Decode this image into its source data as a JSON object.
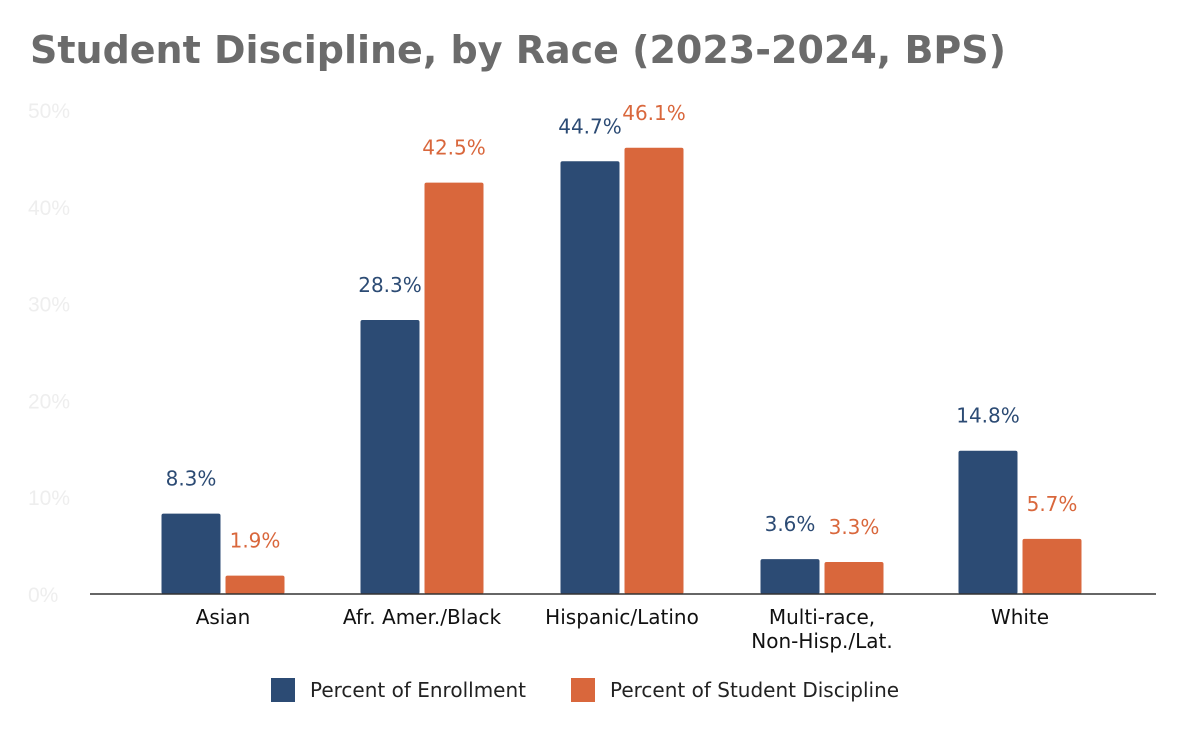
{
  "chart_data": {
    "type": "bar",
    "title": "Student Discipline, by Race (2023-2024, BPS)",
    "categories": [
      [
        "Asian"
      ],
      [
        "Afr. Amer./Black"
      ],
      [
        "Hispanic/Latino"
      ],
      [
        "Multi-race,",
        "Non-Hisp./Lat."
      ],
      [
        "White"
      ]
    ],
    "series": [
      {
        "name": "Percent of Enrollment",
        "color": "#2c4b74",
        "values": [
          8.3,
          28.3,
          44.7,
          3.6,
          14.8
        ],
        "labels": [
          "8.3%",
          "28.3%",
          "44.7%",
          "3.6%",
          "14.8%"
        ]
      },
      {
        "name": "Percent of Student Discipline",
        "color": "#d9673c",
        "values": [
          1.9,
          42.5,
          46.1,
          3.3,
          5.7
        ],
        "labels": [
          "1.9%",
          "42.5%",
          "46.1%",
          "3.3%",
          "5.7%"
        ]
      }
    ],
    "yticks": [
      "0%",
      "10%",
      "20%",
      "30%",
      "40%",
      "50%"
    ],
    "ylim": [
      0,
      50
    ],
    "grid": false,
    "legend": "bottom-center"
  }
}
